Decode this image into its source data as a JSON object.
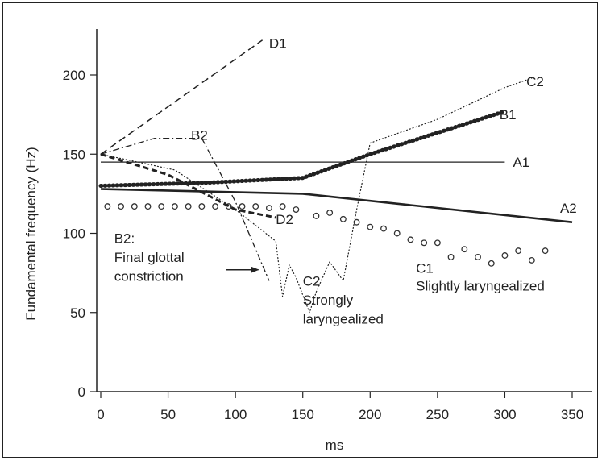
{
  "chart_data": {
    "type": "line",
    "title": "",
    "xlabel": "ms",
    "ylabel": "Fundamental frequency (Hz)",
    "xlim": [
      0,
      350
    ],
    "ylim": [
      0,
      230
    ],
    "x_ticks": [
      0,
      50,
      100,
      150,
      200,
      250,
      300,
      350
    ],
    "y_ticks": [
      0,
      50,
      100,
      150,
      200
    ],
    "series": [
      {
        "name": "A1",
        "style": "thin-solid",
        "points": [
          [
            0,
            145
          ],
          [
            300,
            145
          ]
        ]
      },
      {
        "name": "A2",
        "style": "thick-solid",
        "points": [
          [
            0,
            128
          ],
          [
            150,
            125
          ],
          [
            350,
            107
          ]
        ]
      },
      {
        "name": "B1",
        "style": "thick-dotted",
        "points": [
          [
            0,
            130
          ],
          [
            80,
            132
          ],
          [
            150,
            135
          ],
          [
            200,
            150
          ],
          [
            300,
            177
          ]
        ]
      },
      {
        "name": "B2",
        "style": "dash-dot",
        "points": [
          [
            0,
            150
          ],
          [
            40,
            160
          ],
          [
            75,
            160
          ],
          [
            100,
            120
          ],
          [
            125,
            70
          ]
        ]
      },
      {
        "name": "C1",
        "style": "circles",
        "points": [
          [
            5,
            117
          ],
          [
            15,
            117
          ],
          [
            25,
            117
          ],
          [
            35,
            117
          ],
          [
            45,
            117
          ],
          [
            55,
            117
          ],
          [
            65,
            117
          ],
          [
            75,
            117
          ],
          [
            85,
            117
          ],
          [
            95,
            117
          ],
          [
            105,
            117
          ],
          [
            115,
            117
          ],
          [
            125,
            116
          ],
          [
            135,
            117
          ],
          [
            145,
            115
          ],
          [
            160,
            111
          ],
          [
            170,
            113
          ],
          [
            180,
            109
          ],
          [
            190,
            107
          ],
          [
            200,
            104
          ],
          [
            210,
            103
          ],
          [
            220,
            100
          ],
          [
            230,
            96
          ],
          [
            240,
            94
          ],
          [
            250,
            94
          ],
          [
            260,
            85
          ],
          [
            270,
            90
          ],
          [
            280,
            85
          ],
          [
            290,
            81
          ],
          [
            300,
            86
          ],
          [
            310,
            89
          ],
          [
            320,
            83
          ],
          [
            330,
            89
          ]
        ]
      },
      {
        "name": "C2",
        "style": "fine-dotted",
        "points": [
          [
            0,
            150
          ],
          [
            55,
            140
          ],
          [
            100,
            115
          ],
          [
            130,
            95
          ],
          [
            135,
            60
          ],
          [
            140,
            80
          ],
          [
            145,
            72
          ],
          [
            155,
            50
          ],
          [
            160,
            63
          ],
          [
            170,
            82
          ],
          [
            180,
            70
          ],
          [
            190,
            115
          ],
          [
            200,
            157
          ],
          [
            250,
            172
          ],
          [
            300,
            192
          ],
          [
            320,
            198
          ]
        ]
      },
      {
        "name": "D1",
        "style": "dashed",
        "points": [
          [
            0,
            150
          ],
          [
            120,
            222
          ]
        ]
      },
      {
        "name": "D2",
        "style": "thick-dashed",
        "points": [
          [
            0,
            150
          ],
          [
            50,
            137
          ],
          [
            100,
            115
          ],
          [
            130,
            110
          ]
        ]
      }
    ],
    "annotations": [
      {
        "text": "D1",
        "x": 125,
        "y": 220
      },
      {
        "text": "C2",
        "x": 316,
        "y": 196
      },
      {
        "text": "B1",
        "x": 296,
        "y": 175
      },
      {
        "text": "B2",
        "x": 67,
        "y": 162
      },
      {
        "text": "A1",
        "x": 306,
        "y": 145
      },
      {
        "text": "A2",
        "x": 341,
        "y": 116
      },
      {
        "text": "D2",
        "x": 130,
        "y": 109
      },
      {
        "text": "C1",
        "x": 234,
        "y": 78
      },
      {
        "text": "Slightly laryngealized",
        "x": 234,
        "y": 67
      },
      {
        "text": "B2:",
        "x": 10,
        "y": 97
      },
      {
        "text": "Final glottal",
        "x": 10,
        "y": 85
      },
      {
        "text": "constriction",
        "x": 10,
        "y": 73
      },
      {
        "text": "C2",
        "x": 150,
        "y": 70
      },
      {
        "text": "Strongly",
        "x": 150,
        "y": 58
      },
      {
        "text": "laryngealized",
        "x": 150,
        "y": 46
      }
    ],
    "arrows": [
      {
        "from": [
          93,
          77
        ],
        "to": [
          117,
          77
        ]
      }
    ],
    "grid": false,
    "legend": "none"
  }
}
